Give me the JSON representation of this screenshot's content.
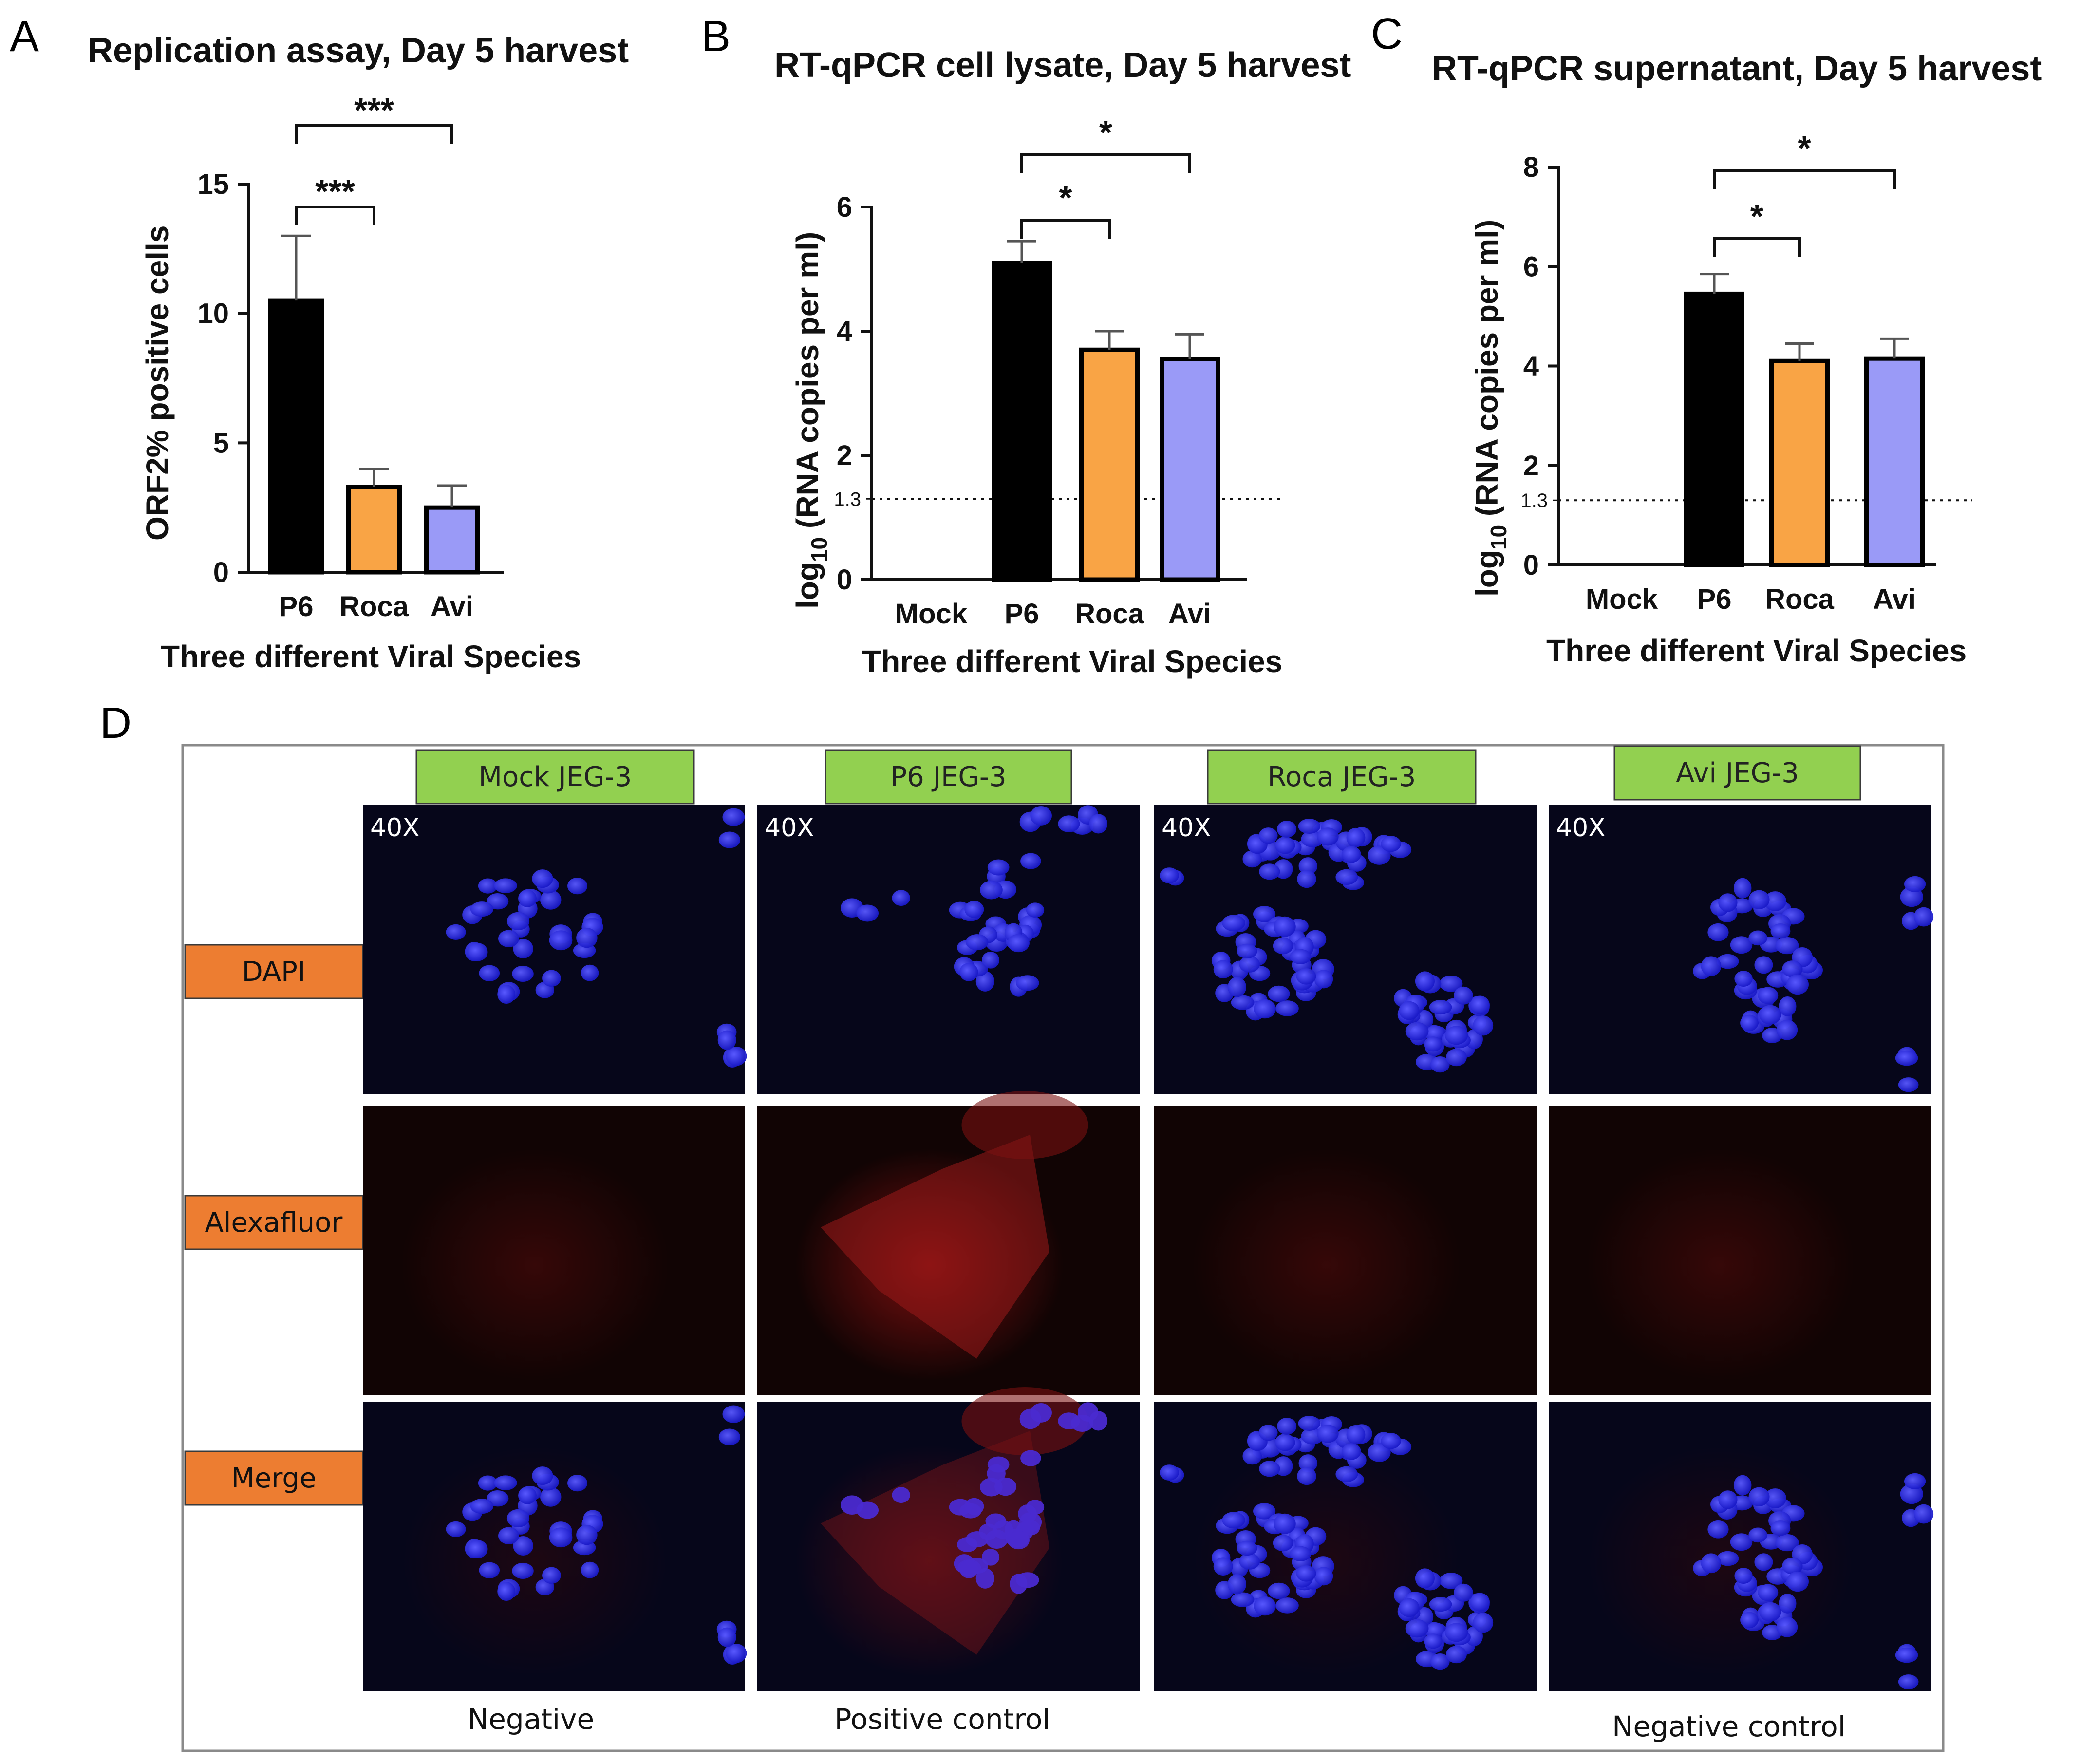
{
  "panels": {
    "A": "A",
    "B": "B",
    "C": "C",
    "D": "D"
  },
  "chart_data": [
    {
      "type": "bar",
      "title": "Replication assay, Day 5 harvest",
      "xlabel": "Three different Viral Species",
      "ylabel": "ORF2% positive cells",
      "categories": [
        "P6",
        "Roca",
        "Avi"
      ],
      "values": [
        10.5,
        3.3,
        2.5
      ],
      "errors": [
        2.5,
        0.7,
        0.85
      ],
      "colors": [
        "#000000",
        "#F9A445",
        "#9A9AF7"
      ],
      "ylim": [
        0,
        15
      ],
      "yticks": [
        0,
        5,
        10,
        15
      ],
      "significance": [
        {
          "from": "P6",
          "to": "Roca",
          "label": "***"
        },
        {
          "from": "P6",
          "to": "Avi",
          "label": "***"
        }
      ]
    },
    {
      "type": "bar",
      "title": "RT-qPCR cell lysate, Day 5 harvest",
      "xlabel": "Three different Viral Species",
      "ylabel": "log10 (RNA copies per ml)",
      "categories": [
        "Mock",
        "P6",
        "Roca",
        "Avi"
      ],
      "values": [
        0,
        5.1,
        3.7,
        3.55
      ],
      "errors": [
        0,
        0.35,
        0.3,
        0.4
      ],
      "colors": [
        "#000000",
        "#000000",
        "#F9A445",
        "#9A9AF7"
      ],
      "ylim": [
        0,
        6
      ],
      "yticks": [
        0,
        2,
        4,
        6
      ],
      "threshold": {
        "value": 1.3,
        "label": "1.3"
      },
      "significance": [
        {
          "from": "P6",
          "to": "Roca",
          "label": "*"
        },
        {
          "from": "P6",
          "to": "Avi",
          "label": "*"
        }
      ]
    },
    {
      "type": "bar",
      "title": "RT-qPCR supernatant, Day 5 harvest",
      "xlabel": "Three different Viral Species",
      "ylabel": "log10 (RNA copies per ml)",
      "categories": [
        "Mock",
        "P6",
        "Roca",
        "Avi"
      ],
      "values": [
        0,
        5.45,
        4.1,
        4.15
      ],
      "errors": [
        0,
        0.4,
        0.35,
        0.4
      ],
      "colors": [
        "#000000",
        "#000000",
        "#F9A445",
        "#9A9AF7"
      ],
      "ylim": [
        0,
        8
      ],
      "yticks": [
        0,
        2,
        4,
        6,
        8
      ],
      "threshold": {
        "value": 1.3,
        "label": "1.3"
      },
      "significance": [
        {
          "from": "P6",
          "to": "Roca",
          "label": "*"
        },
        {
          "from": "P6",
          "to": "Avi",
          "label": "*"
        }
      ]
    }
  ],
  "microscopy": {
    "columns": [
      "Mock JEG-3",
      "P6 JEG-3",
      "Roca JEG-3",
      "Avi JEG-3"
    ],
    "rows": [
      "DAPI",
      "Alexafluor",
      "Merge"
    ],
    "magnification": "40X",
    "captions": [
      "Negative",
      "Positive control",
      "",
      "Negative control"
    ],
    "header_color": "#92D050",
    "label_color": "#ED7D31"
  }
}
